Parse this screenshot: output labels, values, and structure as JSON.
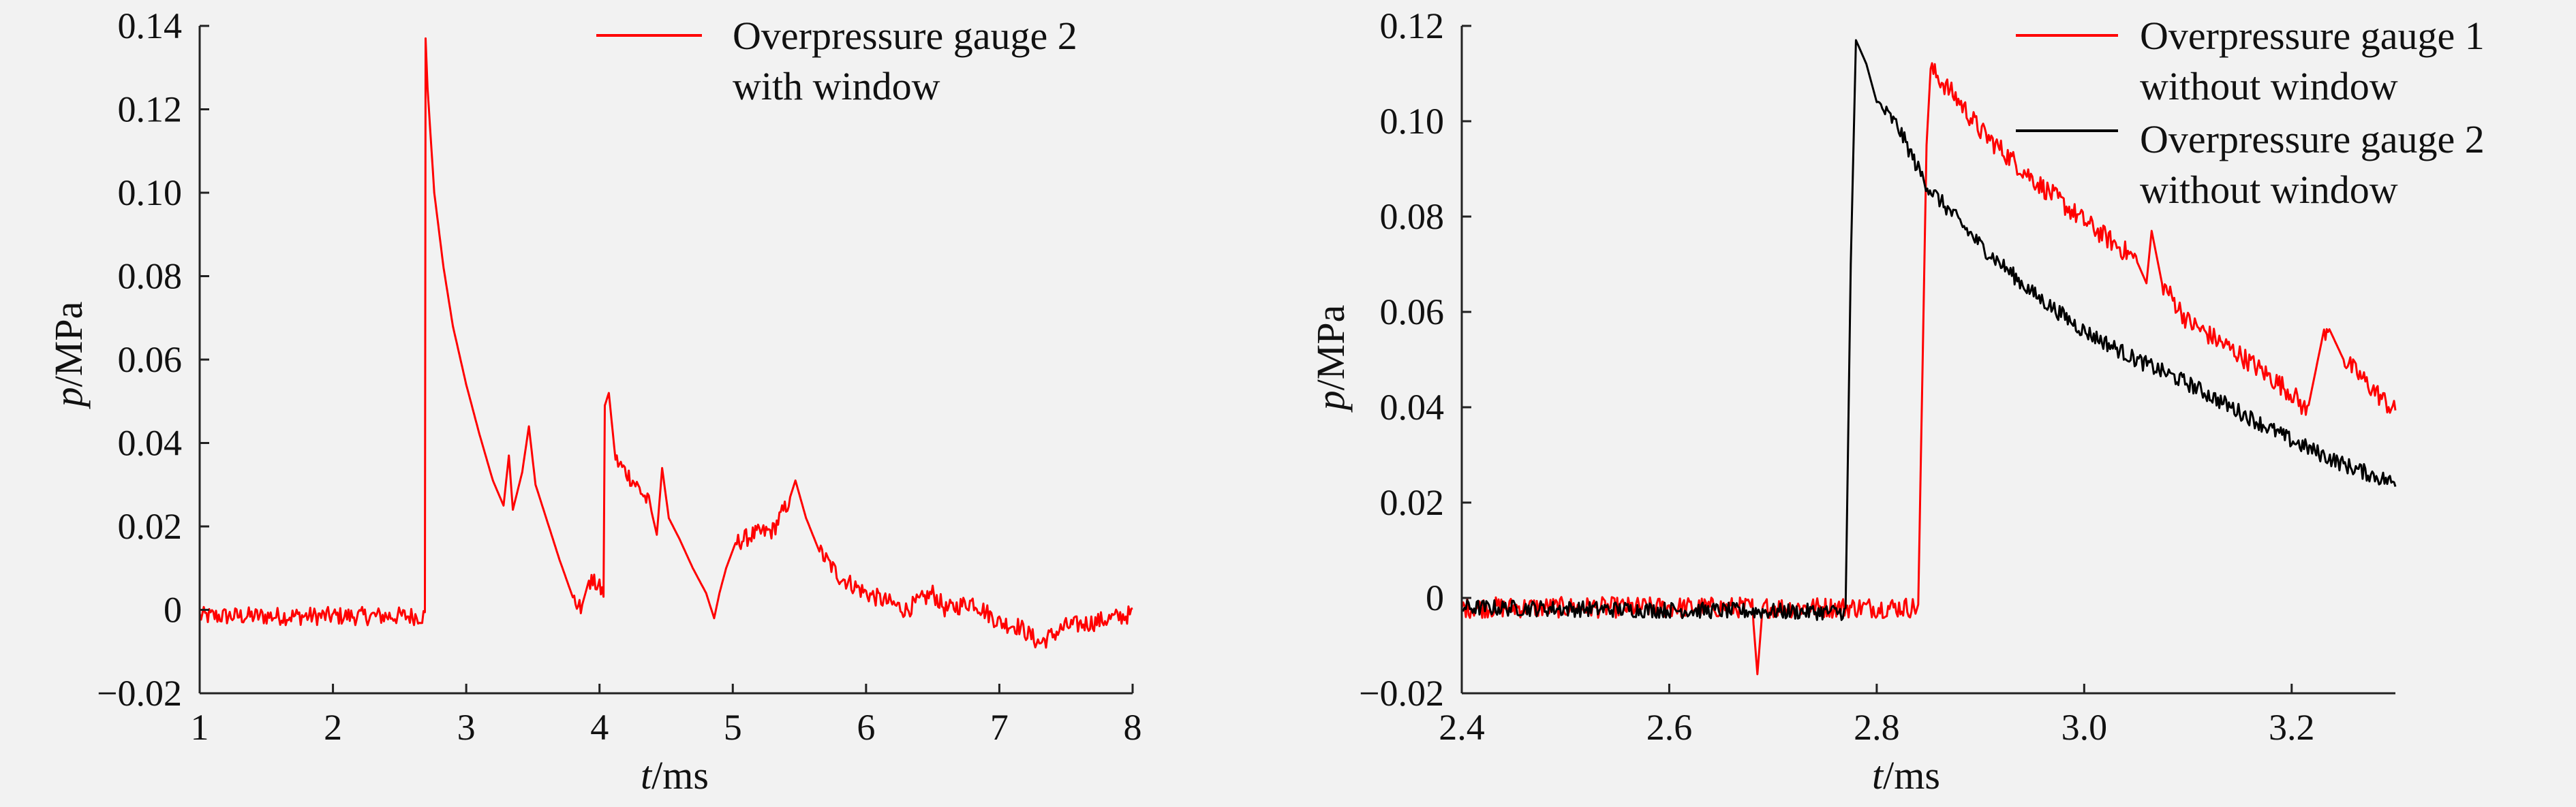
{
  "chart_data": [
    {
      "type": "line",
      "xlabel_var": "t",
      "xlabel_unit": "/ms",
      "ylabel_var": "p",
      "ylabel_unit": "/MPa",
      "xlim": [
        1,
        8
      ],
      "ylim": [
        -0.02,
        0.14
      ],
      "xticks": [
        1,
        2,
        3,
        4,
        5,
        6,
        7,
        8
      ],
      "xtick_labels": [
        "1",
        "2",
        "3",
        "4",
        "5",
        "6",
        "7",
        "8"
      ],
      "yticks": [
        -0.02,
        0,
        0.02,
        0.04,
        0.06,
        0.08,
        0.1,
        0.12,
        0.14
      ],
      "ytick_labels": [
        "−0.02",
        "0",
        "0.02",
        "0.04",
        "0.06",
        "0.08",
        "0.10",
        "0.12",
        "0.14"
      ],
      "grid": false,
      "legend_position": "top-right",
      "series": [
        {
          "name_lines": [
            "Overpressure gauge 2",
            "with window"
          ],
          "color": "#ff0000",
          "noise": 0.0022,
          "points": [
            [
              1.0,
              -0.0015
            ],
            [
              2.69,
              -0.0015
            ],
            [
              2.695,
              0.137
            ],
            [
              2.71,
              0.125
            ],
            [
              2.76,
              0.1
            ],
            [
              2.83,
              0.082
            ],
            [
              2.9,
              0.068
            ],
            [
              3.0,
              0.054
            ],
            [
              3.1,
              0.042
            ],
            [
              3.2,
              0.031
            ],
            [
              3.28,
              0.025
            ],
            [
              3.32,
              0.037
            ],
            [
              3.35,
              0.024
            ],
            [
              3.42,
              0.033
            ],
            [
              3.47,
              0.044
            ],
            [
              3.52,
              0.03
            ],
            [
              3.6,
              0.022
            ],
            [
              3.7,
              0.012
            ],
            [
              3.8,
              0.003
            ],
            [
              3.86,
              0.0
            ],
            [
              3.92,
              0.007
            ],
            [
              3.98,
              0.006
            ],
            [
              4.03,
              0.004
            ],
            [
              4.04,
              0.049
            ],
            [
              4.07,
              0.052
            ],
            [
              4.12,
              0.036
            ],
            [
              4.2,
              0.033
            ],
            [
              4.3,
              0.029
            ],
            [
              4.38,
              0.025
            ],
            [
              4.43,
              0.018
            ],
            [
              4.47,
              0.034
            ],
            [
              4.52,
              0.022
            ],
            [
              4.6,
              0.017
            ],
            [
              4.7,
              0.01
            ],
            [
              4.8,
              0.004
            ],
            [
              4.86,
              -0.002
            ],
            [
              4.9,
              0.004
            ],
            [
              4.95,
              0.01
            ],
            [
              5.02,
              0.016
            ],
            [
              5.15,
              0.018
            ],
            [
              5.3,
              0.019
            ],
            [
              5.42,
              0.026
            ],
            [
              5.47,
              0.031
            ],
            [
              5.55,
              0.022
            ],
            [
              5.65,
              0.014
            ],
            [
              5.8,
              0.008
            ],
            [
              6.0,
              0.004
            ],
            [
              6.3,
              0.0
            ],
            [
              6.5,
              0.004
            ],
            [
              6.6,
              0.0
            ],
            [
              6.8,
              0.002
            ],
            [
              7.0,
              -0.003
            ],
            [
              7.15,
              -0.004
            ],
            [
              7.3,
              -0.008
            ],
            [
              7.5,
              -0.004
            ],
            [
              7.7,
              -0.003
            ],
            [
              8.0,
              -0.001
            ]
          ]
        }
      ]
    },
    {
      "type": "line",
      "xlabel_var": "t",
      "xlabel_unit": "/ms",
      "ylabel_var": "p",
      "ylabel_unit": "/MPa",
      "xlim": [
        2.4,
        3.3
      ],
      "ylim": [
        -0.02,
        0.12
      ],
      "xticks": [
        2.4,
        2.6,
        2.8,
        3.0,
        3.2
      ],
      "xtick_labels": [
        "2.4",
        "2.6",
        "2.8",
        "3.0",
        "3.2"
      ],
      "yticks": [
        -0.02,
        0,
        0.02,
        0.04,
        0.06,
        0.08,
        0.1,
        0.12
      ],
      "ytick_labels": [
        "−0.02",
        "0",
        "0.02",
        "0.04",
        "0.06",
        "0.08",
        "0.10",
        "0.12"
      ],
      "grid": false,
      "legend_position": "top-right",
      "series": [
        {
          "name_lines": [
            "Overpressure gauge 1",
            "without window"
          ],
          "color": "#ff0000",
          "noise": 0.0022,
          "points": [
            [
              2.4,
              -0.002
            ],
            [
              2.68,
              -0.002
            ],
            [
              2.685,
              -0.016
            ],
            [
              2.69,
              -0.002
            ],
            [
              2.84,
              -0.002
            ],
            [
              2.848,
              0.095
            ],
            [
              2.852,
              0.111
            ],
            [
              2.86,
              0.109
            ],
            [
              2.88,
              0.104
            ],
            [
              2.9,
              0.098
            ],
            [
              2.95,
              0.088
            ],
            [
              3.0,
              0.079
            ],
            [
              3.05,
              0.071
            ],
            [
              3.06,
              0.066
            ],
            [
              3.065,
              0.077
            ],
            [
              3.075,
              0.066
            ],
            [
              3.1,
              0.058
            ],
            [
              3.15,
              0.051
            ],
            [
              3.2,
              0.043
            ],
            [
              3.215,
              0.039
            ],
            [
              3.23,
              0.055
            ],
            [
              3.235,
              0.057
            ],
            [
              3.25,
              0.05
            ],
            [
              3.3,
              0.039
            ]
          ]
        },
        {
          "name_lines": [
            "Overpressure gauge 2",
            "without window"
          ],
          "color": "#000000",
          "noise": 0.0017,
          "points": [
            [
              2.4,
              -0.002
            ],
            [
              2.77,
              -0.003
            ],
            [
              2.775,
              0.07
            ],
            [
              2.78,
              0.117
            ],
            [
              2.79,
              0.112
            ],
            [
              2.8,
              0.104
            ],
            [
              2.82,
              0.099
            ],
            [
              2.84,
              0.09
            ],
            [
              2.85,
              0.086
            ],
            [
              2.9,
              0.074
            ],
            [
              2.95,
              0.064
            ],
            [
              3.0,
              0.056
            ],
            [
              3.05,
              0.05
            ],
            [
              3.1,
              0.045
            ],
            [
              3.15,
              0.039
            ],
            [
              3.2,
              0.033
            ],
            [
              3.25,
              0.028
            ],
            [
              3.3,
              0.024
            ]
          ]
        }
      ]
    }
  ]
}
